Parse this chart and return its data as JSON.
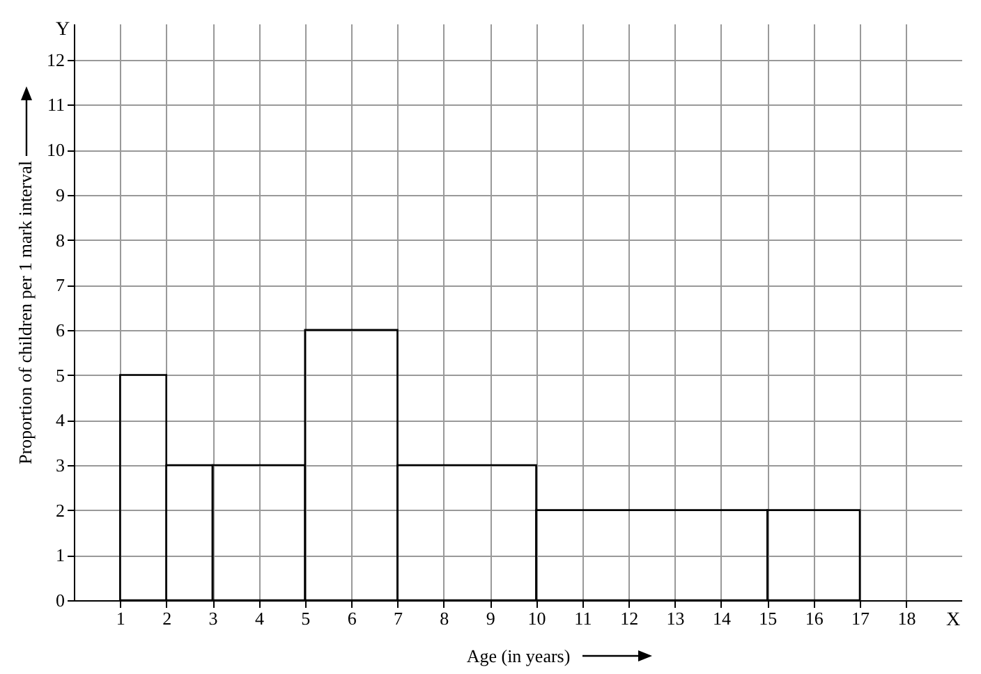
{
  "chart_data": {
    "type": "histogram",
    "xlabel": "Age (in years)",
    "ylabel": "Proportion of children per 1 mark interval",
    "bins": [
      1,
      2,
      3,
      5,
      7,
      10,
      15,
      17
    ],
    "values": [
      5,
      3,
      3,
      6,
      3,
      2,
      2
    ],
    "color": "#000000",
    "xlim": [
      0,
      19.2
    ],
    "ylim": [
      0,
      12.8
    ],
    "xticks": [
      1,
      2,
      3,
      4,
      5,
      6,
      7,
      8,
      9,
      10,
      11,
      12,
      13,
      14,
      15,
      16,
      17,
      18
    ],
    "yticks": [
      0,
      1,
      2,
      3,
      4,
      5,
      6,
      7,
      8,
      9,
      10,
      11,
      12
    ],
    "grid": true,
    "annotations": [
      "X",
      "Y"
    ]
  }
}
